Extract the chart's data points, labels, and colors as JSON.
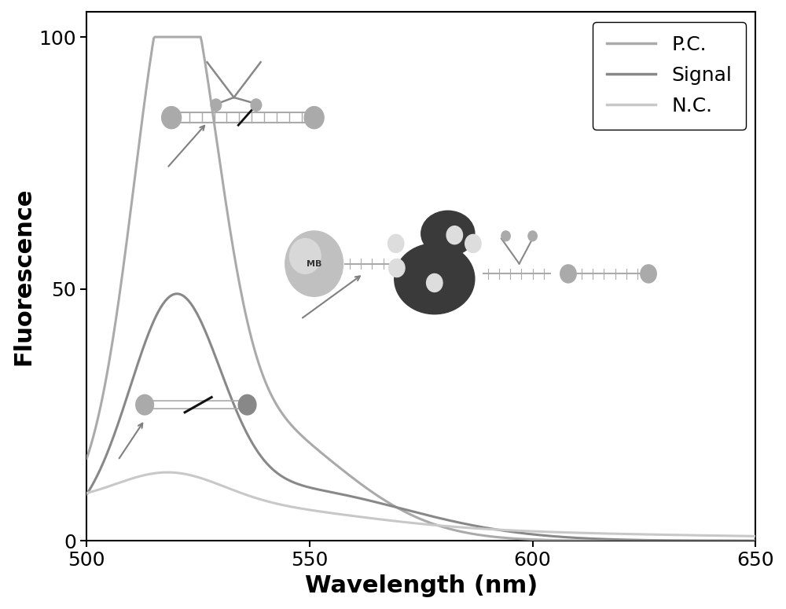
{
  "x_min": 500,
  "x_max": 650,
  "y_min": 0,
  "y_max": 105,
  "xlabel": "Wavelength (nm)",
  "ylabel": "Fluorescence",
  "xticks": [
    500,
    550,
    600,
    650
  ],
  "yticks": [
    0,
    50,
    100
  ],
  "pc_color": "#aaaaaa",
  "signal_color": "#888888",
  "nc_color": "#c8c8c8",
  "legend_labels": [
    "P.C.",
    "Signal",
    "N.C."
  ],
  "legend_colors": [
    "#aaaaaa",
    "#888888",
    "#c8c8c8"
  ]
}
